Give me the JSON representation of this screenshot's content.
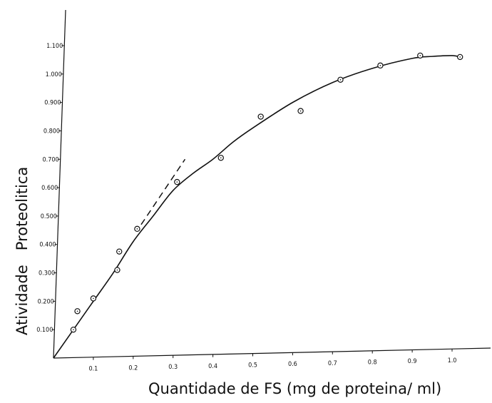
{
  "chart_data": {
    "type": "scatter",
    "xlabel": "Quantidade de FS (mg de proteina/ ml)",
    "ylabel": "Atividade   Proteolitica",
    "xlim": [
      0,
      1.07
    ],
    "ylim": [
      0,
      1.2
    ],
    "x_ticks": [
      "0.1",
      "0.2",
      "0.3",
      "0.4",
      "0.5",
      "0.6",
      "0.7",
      "0.8",
      "0.9",
      "1.0"
    ],
    "y_ticks": [
      "0.100",
      "0.200",
      "0.300",
      "0.400",
      "0.500",
      "0.600",
      "0.700",
      "0.800",
      "0.900",
      "1.000",
      "1.100"
    ],
    "grid": false,
    "legend": "none",
    "series": [
      {
        "marker": "open-circle",
        "x": [
          0.05,
          0.06,
          0.1,
          0.16,
          0.165,
          0.21,
          0.31,
          0.42,
          0.52,
          0.62,
          0.72,
          0.82,
          0.92,
          1.02
        ],
        "y": [
          0.1,
          0.165,
          0.21,
          0.31,
          0.375,
          0.455,
          0.62,
          0.705,
          0.85,
          0.87,
          0.98,
          1.03,
          1.065,
          1.06
        ]
      },
      {
        "style": "solid-curve",
        "x": [
          0,
          0.05,
          0.1,
          0.15,
          0.2,
          0.25,
          0.3,
          0.35,
          0.4,
          0.45,
          0.5,
          0.6,
          0.7,
          0.8,
          0.9,
          0.95,
          1.0,
          1.02
        ],
        "y": [
          0,
          0.1,
          0.2,
          0.3,
          0.41,
          0.5,
          0.59,
          0.65,
          0.7,
          0.76,
          0.81,
          0.9,
          0.97,
          1.02,
          1.055,
          1.062,
          1.065,
          1.06
        ]
      },
      {
        "style": "dashed-tangent",
        "x": [
          0.22,
          0.33
        ],
        "y": [
          0.47,
          0.7
        ]
      }
    ]
  }
}
